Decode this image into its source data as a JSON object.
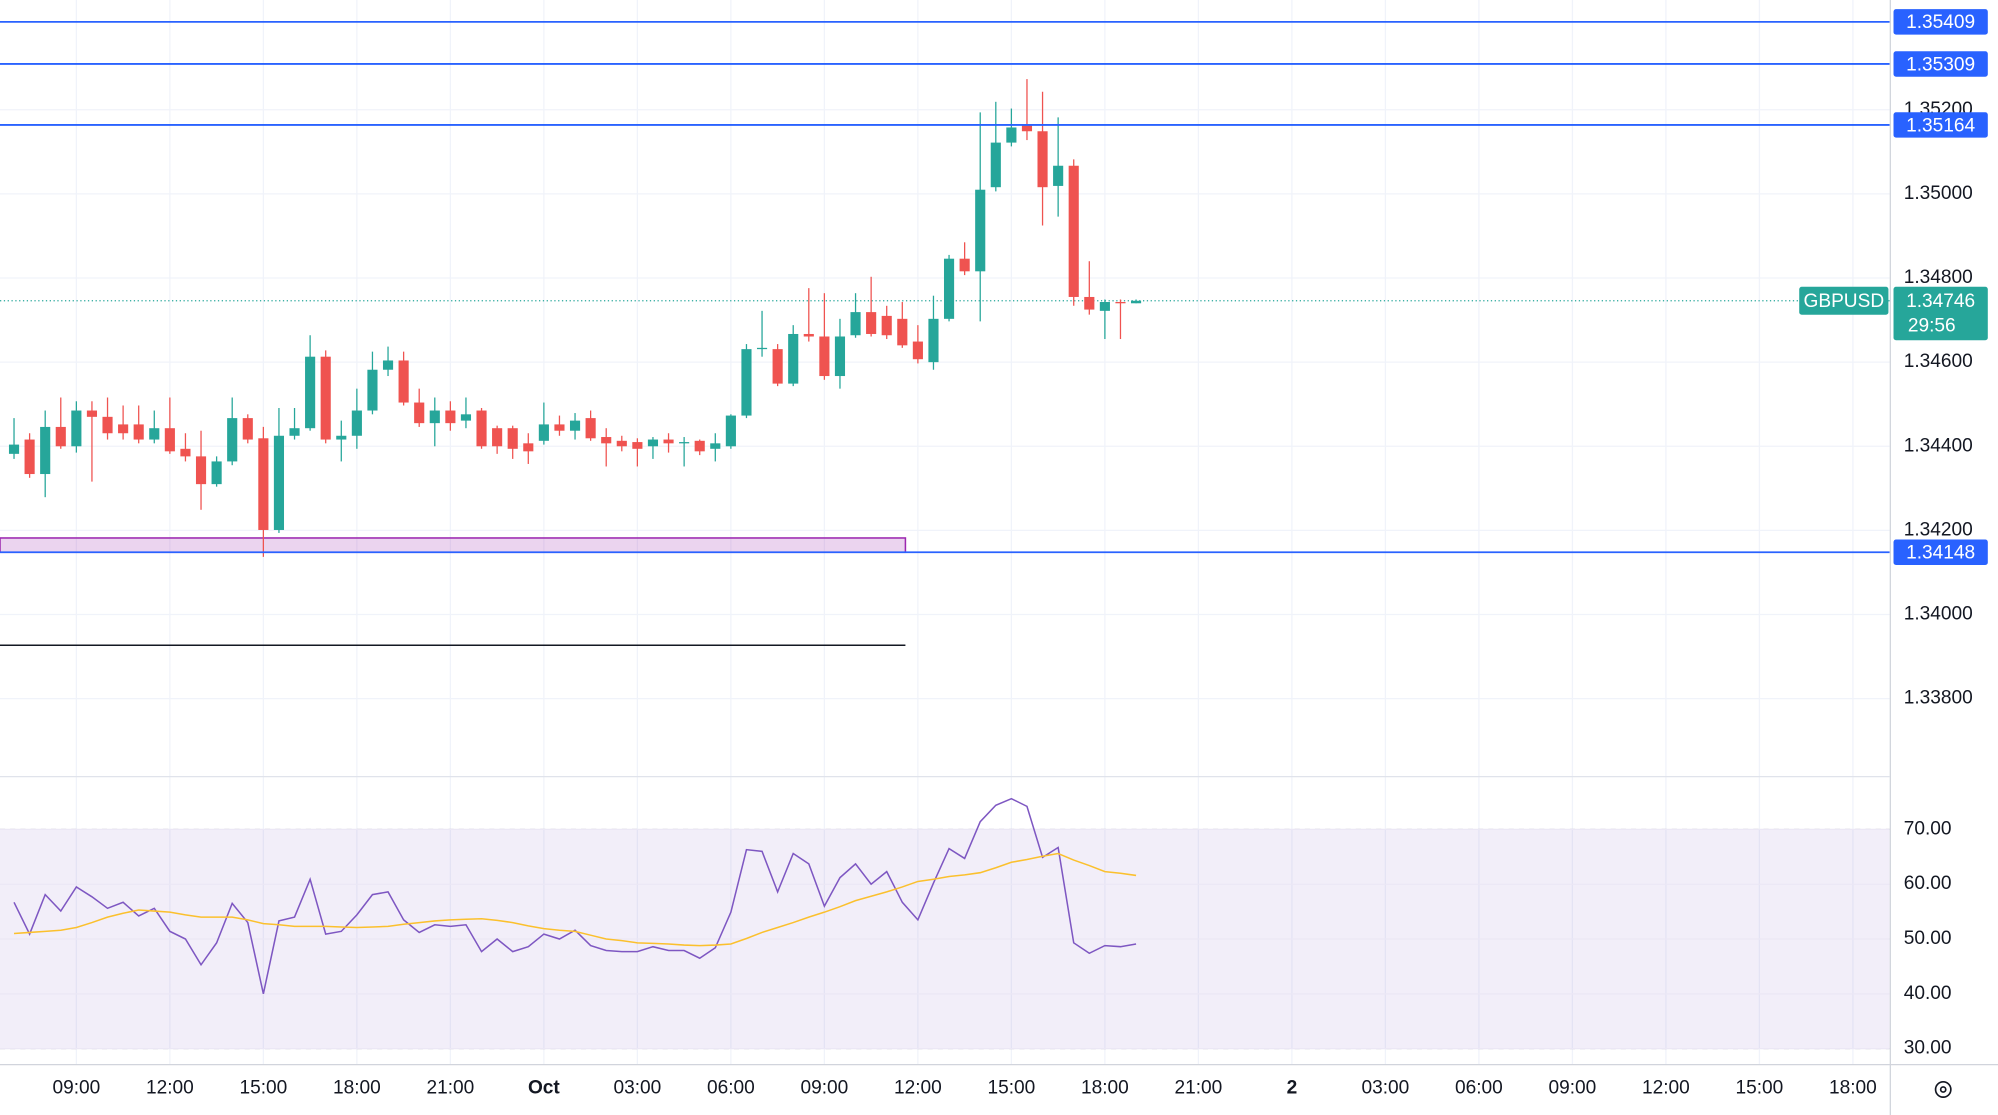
{
  "chart_data": [
    {
      "type": "candlestick",
      "symbol": "GBPUSD",
      "countdown": "29:56",
      "up_color": "#26a69a",
      "down_color": "#ef5350",
      "grid": true,
      "open": [
        1.34382,
        1.34416,
        1.34334,
        1.34446,
        1.344,
        1.34485,
        1.3447,
        1.34452,
        1.34452,
        1.34416,
        1.34443,
        1.34394,
        1.34376,
        1.3431,
        1.34364,
        1.34467,
        1.34419,
        1.34201,
        1.34425,
        1.34443,
        1.34613,
        1.34416,
        1.34425,
        1.34485,
        1.34582,
        1.34604,
        1.34504,
        1.34455,
        1.34485,
        1.34461,
        1.34485,
        1.34443,
        1.34443,
        1.34407,
        1.34413,
        1.34452,
        1.34437,
        1.34467,
        1.34422,
        1.34413,
        1.3441,
        1.344,
        1.34416,
        1.34407,
        1.34413,
        1.34394,
        1.344,
        1.34473,
        1.34631,
        1.34631,
        1.34549,
        1.34667,
        1.34661,
        1.34567,
        1.34664,
        1.34719,
        1.3471,
        1.34703,
        1.34649,
        1.346,
        1.34703,
        1.34846,
        1.34816,
        1.35016,
        1.35122,
        1.35164,
        1.35149,
        1.35019,
        1.35067,
        1.34755,
        1.34722,
        1.34743,
        1.3474
      ],
      "high": [
        1.34467,
        1.34431,
        1.34485,
        1.34516,
        1.34507,
        1.34507,
        1.34516,
        1.34497,
        1.34497,
        1.34485,
        1.34516,
        1.34431,
        1.34437,
        1.34376,
        1.34516,
        1.34476,
        1.34446,
        1.34491,
        1.34491,
        1.34664,
        1.34628,
        1.34461,
        1.34537,
        1.34625,
        1.34637,
        1.34625,
        1.34537,
        1.34516,
        1.34507,
        1.34516,
        1.34491,
        1.34449,
        1.34449,
        1.34431,
        1.34504,
        1.34473,
        1.34479,
        1.34485,
        1.34443,
        1.34425,
        1.34419,
        1.34422,
        1.34431,
        1.34422,
        1.34416,
        1.34431,
        1.34476,
        1.34643,
        1.34722,
        1.34643,
        1.34688,
        1.34776,
        1.34764,
        1.34703,
        1.34764,
        1.34803,
        1.34734,
        1.34743,
        1.34688,
        1.34758,
        1.34855,
        1.34885,
        1.35194,
        1.35219,
        1.35203,
        1.35273,
        1.35243,
        1.35182,
        1.35082,
        1.3484,
        1.34749,
        1.34749,
        1.34749
      ],
      "low": [
        1.3437,
        1.34325,
        1.34279,
        1.34394,
        1.34385,
        1.34316,
        1.34416,
        1.34416,
        1.34407,
        1.34407,
        1.34382,
        1.34364,
        1.34249,
        1.34304,
        1.34355,
        1.34407,
        1.34137,
        1.34194,
        1.34416,
        1.34437,
        1.34407,
        1.34364,
        1.34394,
        1.34476,
        1.34567,
        1.34497,
        1.34446,
        1.344,
        1.34437,
        1.34443,
        1.34394,
        1.34382,
        1.3437,
        1.34358,
        1.34404,
        1.34425,
        1.34416,
        1.34413,
        1.34352,
        1.34388,
        1.34352,
        1.3437,
        1.34385,
        1.34352,
        1.34379,
        1.34364,
        1.34394,
        1.34467,
        1.34613,
        1.34543,
        1.34543,
        1.34649,
        1.34558,
        1.34537,
        1.34658,
        1.34661,
        1.34655,
        1.34634,
        1.34597,
        1.34582,
        1.34697,
        1.34807,
        1.34697,
        1.35006,
        1.35113,
        1.35128,
        1.34925,
        1.34946,
        1.34734,
        1.34713,
        1.34655,
        1.34655,
        1.3474
      ],
      "close": [
        1.34404,
        1.34334,
        1.34446,
        1.344,
        1.34485,
        1.3447,
        1.34431,
        1.34431,
        1.34416,
        1.34443,
        1.34388,
        1.34376,
        1.3431,
        1.34364,
        1.34467,
        1.34416,
        1.34201,
        1.34425,
        1.34443,
        1.34613,
        1.34416,
        1.34425,
        1.34485,
        1.34582,
        1.34604,
        1.34504,
        1.34455,
        1.34485,
        1.34455,
        1.34476,
        1.344,
        1.344,
        1.34394,
        1.34388,
        1.34452,
        1.34437,
        1.34461,
        1.34419,
        1.34407,
        1.344,
        1.34394,
        1.34416,
        1.34407,
        1.3441,
        1.34388,
        1.34407,
        1.34473,
        1.34631,
        1.34634,
        1.34549,
        1.34667,
        1.34661,
        1.34567,
        1.34661,
        1.34719,
        1.34667,
        1.34664,
        1.3464,
        1.34607,
        1.34703,
        1.34846,
        1.34816,
        1.3501,
        1.35122,
        1.35158,
        1.35149,
        1.35016,
        1.35067,
        1.34755,
        1.34725,
        1.34743,
        1.3474,
        1.34746
      ],
      "xlim": [
        -0.9,
        120.36
      ],
      "xticks": [
        {
          "value": 4,
          "label": "09:00"
        },
        {
          "value": 10,
          "label": "12:00"
        },
        {
          "value": 16,
          "label": "15:00"
        },
        {
          "value": 22,
          "label": "18:00"
        },
        {
          "value": 28,
          "label": "21:00"
        },
        {
          "value": 34,
          "label": "Oct"
        },
        {
          "value": 40,
          "label": "03:00"
        },
        {
          "value": 46,
          "label": "06:00"
        },
        {
          "value": 52,
          "label": "09:00"
        },
        {
          "value": 58,
          "label": "12:00"
        },
        {
          "value": 64,
          "label": "15:00"
        },
        {
          "value": 70,
          "label": "18:00"
        },
        {
          "value": 76,
          "label": "21:00"
        },
        {
          "value": 82,
          "label": "2"
        },
        {
          "value": 88,
          "label": "03:00"
        },
        {
          "value": 94,
          "label": "06:00"
        },
        {
          "value": 100,
          "label": "09:00"
        },
        {
          "value": 106,
          "label": "12:00"
        },
        {
          "value": 112,
          "label": "15:00"
        },
        {
          "value": 118,
          "label": "18:00"
        }
      ],
      "ylim": [
        1.33616,
        1.35461
      ],
      "yticks": [
        {
          "value": 1.338,
          "label": "1.33800"
        },
        {
          "value": 1.34,
          "label": "1.34000"
        },
        {
          "value": 1.342,
          "label": "1.34200"
        },
        {
          "value": 1.344,
          "label": "1.34400"
        },
        {
          "value": 1.346,
          "label": "1.34600"
        },
        {
          "value": 1.348,
          "label": "1.34800"
        },
        {
          "value": 1.35,
          "label": "1.35000"
        },
        {
          "value": 1.352,
          "label": "1.35200"
        }
      ],
      "levels": [
        {
          "value": 1.35409,
          "color": "#2962ff"
        },
        {
          "value": 1.35309,
          "color": "#2962ff"
        },
        {
          "value": 1.35164,
          "color": "#2962ff"
        },
        {
          "value": 1.34148,
          "color": "#2962ff"
        }
      ],
      "zone": {
        "low": 1.34148,
        "high": 1.34182,
        "x_end": 57.2,
        "color": "#9c27b0"
      },
      "trend_line": {
        "value": 1.33927,
        "x_end": 57.2,
        "color": "#131722"
      }
    },
    {
      "type": "line",
      "series": [
        {
          "color": "#7e57c2",
          "values": [
            56.7,
            50.9,
            58.1,
            55.1,
            59.5,
            57.7,
            55.6,
            56.7,
            54.2,
            55.6,
            51.4,
            50.0,
            45.3,
            49.3,
            56.5,
            53.0,
            40.0,
            53.3,
            54.0,
            60.9,
            50.9,
            51.4,
            54.4,
            58.1,
            58.6,
            53.5,
            51.2,
            52.6,
            52.3,
            52.6,
            47.7,
            50.0,
            47.7,
            48.6,
            50.9,
            50.0,
            51.6,
            48.8,
            47.9,
            47.7,
            47.7,
            48.6,
            47.9,
            47.9,
            46.5,
            48.4,
            54.9,
            66.3,
            66.0,
            58.6,
            65.6,
            63.7,
            56.0,
            61.2,
            63.7,
            60.0,
            62.3,
            56.7,
            53.5,
            60.2,
            66.5,
            64.7,
            71.4,
            74.4,
            75.6,
            74.2,
            64.9,
            66.7,
            49.3,
            47.4,
            48.8,
            48.6,
            49.1
          ]
        },
        {
          "color": "#fbc02d",
          "values": [
            51.0,
            51.2,
            51.4,
            51.6,
            52.1,
            53.0,
            54.0,
            54.7,
            55.3,
            55.1,
            54.9,
            54.4,
            54.0,
            54.0,
            54.0,
            53.5,
            52.8,
            52.6,
            52.3,
            52.3,
            52.3,
            52.2,
            52.1,
            52.2,
            52.3,
            52.7,
            53.0,
            53.3,
            53.5,
            53.6,
            53.7,
            53.4,
            53.0,
            52.4,
            51.9,
            51.6,
            51.4,
            50.7,
            50.0,
            49.7,
            49.3,
            49.2,
            49.1,
            48.9,
            48.8,
            48.9,
            49.1,
            50.1,
            51.2,
            52.1,
            53.0,
            54.0,
            54.9,
            55.9,
            57.0,
            57.8,
            58.6,
            59.5,
            60.5,
            60.9,
            61.4,
            61.7,
            62.1,
            63.0,
            64.0,
            64.5,
            65.1,
            65.6,
            64.4,
            63.4,
            62.3,
            62.0,
            61.6
          ]
        }
      ],
      "ylim": [
        27.2,
        79.5
      ],
      "yticks": [
        {
          "value": 30,
          "label": "30.00"
        },
        {
          "value": 40,
          "label": "40.00"
        },
        {
          "value": 50,
          "label": "50.00"
        },
        {
          "value": 60,
          "label": "60.00"
        },
        {
          "value": 70,
          "label": "70.00"
        }
      ],
      "band": [
        30,
        70
      ],
      "midline": 50,
      "band_color": "#7e57c2"
    }
  ]
}
